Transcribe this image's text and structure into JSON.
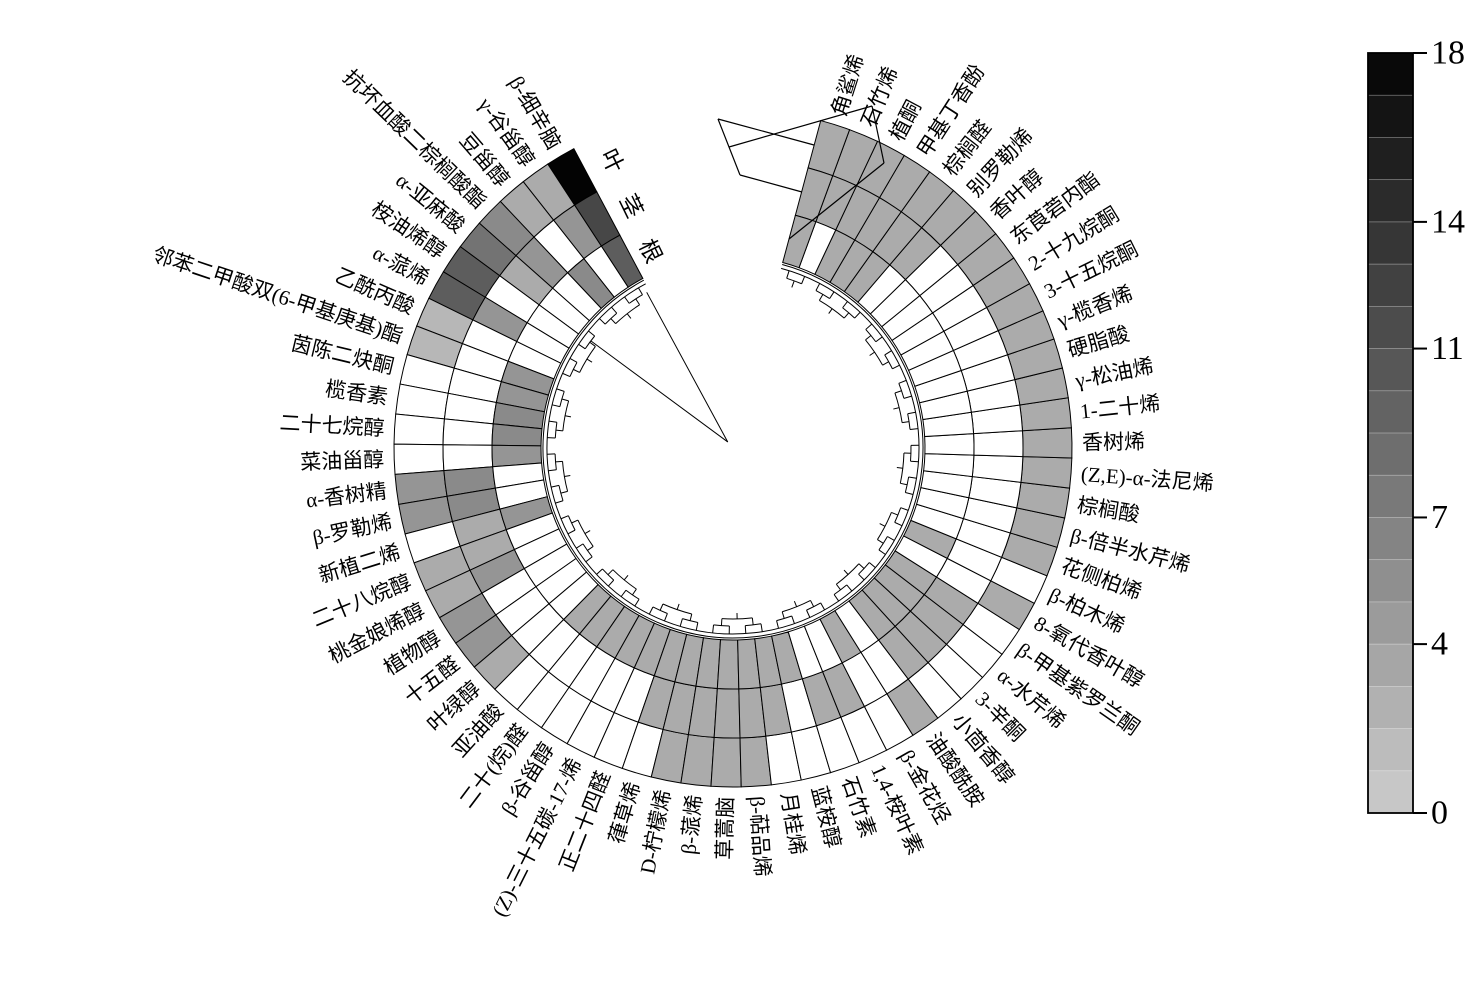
{
  "figure": {
    "description": "Circular clustered heatmap of volatile/chemical compounds across three plant tissues with dendrograms and grayscale colorbar",
    "tissue_rings_note": "outer ring = leaf, middle ring = stem, inner ring = root"
  },
  "chart_data": {
    "type": "heatmap",
    "layout": "circular",
    "rings": [
      "叶",
      "茎",
      "根"
    ],
    "legend_position": "right",
    "grid": false,
    "colorbar": {
      "min": 0,
      "max": 18,
      "ticks": [
        0,
        4,
        7,
        11,
        14,
        18
      ],
      "segments": 18,
      "color_low": "#c9c9c9",
      "color_high": "#030303",
      "null_color": "#ffffff",
      "null_means": "not detected"
    },
    "categories": [
      "β-细辛脑",
      "γ-谷甾醇",
      "豆甾醇",
      "抗坏血酸二棕榈酸酯",
      "α-亚麻酸",
      "桉油烯醇",
      "α-蒎烯",
      "乙酰丙酸",
      "邻苯二甲酸双(6-甲基庚基)酯",
      "茵陈二炔酮",
      "榄香素",
      "二十七烷醇",
      "菜油甾醇",
      "α-香树精",
      "β-罗勒烯",
      "新植二烯",
      "二十八烷醇",
      "桃金娘烯醇",
      "植物醇",
      "十五醛",
      "叶绿醇",
      "亚油酸",
      "二十(烷)醛",
      "β-谷甾醇",
      "(Z)-三十五碳-17-烯",
      "正二十四醛",
      "葎草烯",
      "D-柠檬烯",
      "β-蒎烯",
      "草蒿脑",
      "β-萜品烯",
      "月桂烯",
      "蓝桉醇",
      "石竹素",
      "1,4-桉叶素",
      "β-金花烃",
      "油酸酰胺",
      "小茴香醇",
      "3-辛酮",
      "α-水芹烯",
      "β-甲基紫罗兰酮",
      "8-氧代香叶醇",
      "β-柏木烯",
      "花侧柏烯",
      "β-倍半水芹烯",
      "棕榈酸",
      "(Z,E)-α-法尼烯",
      "香树烯",
      "1-二十烯",
      "γ-松油烯",
      "硬脂酸",
      "γ-榄香烯",
      "3-十五烷酮",
      "2-十九烷酮",
      "东莨菪内酯",
      "香叶醇",
      "别罗勒烯",
      "棕榈醛",
      "甲基丁香酚",
      "植酮",
      "石竹烯",
      "角鲨烯"
    ],
    "series": [
      {
        "name": "叶",
        "values": [
          18,
          3,
          3,
          6,
          8,
          10,
          10,
          2,
          2,
          null,
          null,
          null,
          null,
          5,
          5,
          null,
          3,
          3,
          5,
          5,
          3,
          null,
          null,
          null,
          null,
          null,
          null,
          3,
          3,
          3,
          3,
          null,
          null,
          null,
          null,
          null,
          3,
          null,
          null,
          null,
          null,
          3,
          null,
          3,
          3,
          3,
          3,
          3,
          3,
          3,
          3,
          3,
          3,
          3,
          3,
          3,
          3,
          3,
          3,
          3,
          3,
          3
        ]
      },
      {
        "name": "茎",
        "values": [
          12,
          5,
          null,
          5,
          3,
          null,
          5,
          null,
          null,
          null,
          null,
          null,
          null,
          6,
          6,
          3,
          3,
          5,
          null,
          null,
          null,
          null,
          null,
          null,
          null,
          null,
          3,
          3,
          3,
          3,
          3,
          3,
          null,
          3,
          3,
          null,
          null,
          3,
          3,
          3,
          3,
          null,
          null,
          null,
          null,
          null,
          null,
          null,
          null,
          null,
          null,
          null,
          null,
          null,
          null,
          null,
          3,
          3,
          3,
          3,
          3,
          3
        ]
      },
      {
        "name": "根",
        "values": [
          10,
          null,
          6,
          null,
          null,
          null,
          null,
          null,
          5,
          5,
          6,
          6,
          5,
          null,
          null,
          5,
          null,
          null,
          null,
          null,
          null,
          3,
          3,
          3,
          3,
          3,
          3,
          3,
          3,
          3,
          3,
          3,
          3,
          null,
          null,
          3,
          null,
          3,
          3,
          3,
          3,
          null,
          3,
          null,
          null,
          null,
          null,
          null,
          null,
          null,
          null,
          null,
          null,
          null,
          null,
          null,
          null,
          3,
          3,
          3,
          null,
          3
        ]
      }
    ],
    "title": "",
    "xlabel": "",
    "ylabel": ""
  }
}
